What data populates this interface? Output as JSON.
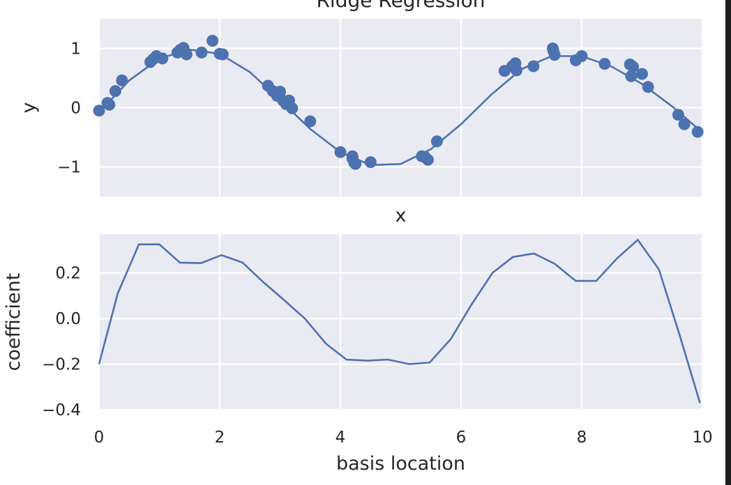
{
  "chart_data": [
    {
      "type": "scatter",
      "title": "Ridge Regression",
      "xlabel": "x",
      "ylabel": "y",
      "xlim": [
        0,
        10
      ],
      "ylim": [
        -1.5,
        1.5
      ],
      "x_ticks": [
        0,
        2,
        4,
        6,
        8,
        10
      ],
      "y_ticks": [
        -1,
        0,
        1
      ],
      "y_tick_labels": [
        "−1",
        "0",
        "1"
      ],
      "grid": true,
      "points": {
        "x": [
          0.0,
          0.14,
          0.17,
          0.27,
          0.38,
          0.85,
          0.9,
          0.95,
          1.05,
          1.3,
          1.35,
          1.4,
          1.45,
          1.7,
          1.88,
          2.0,
          2.05,
          2.8,
          2.88,
          2.95,
          3.0,
          3.05,
          3.1,
          3.15,
          3.2,
          3.5,
          4.0,
          4.2,
          4.2,
          4.23,
          4.25,
          4.5,
          5.35,
          5.4,
          5.45,
          5.6,
          6.72,
          6.85,
          6.9,
          6.92,
          7.2,
          7.52,
          7.53,
          7.55,
          7.9,
          8.0,
          8.38,
          8.8,
          8.82,
          8.85,
          9.0,
          9.1,
          9.6,
          9.7,
          9.92
        ],
        "y": [
          -0.05,
          0.08,
          0.05,
          0.28,
          0.46,
          0.77,
          0.82,
          0.87,
          0.83,
          0.93,
          0.98,
          1.01,
          0.9,
          0.93,
          1.13,
          0.91,
          0.9,
          0.37,
          0.28,
          0.2,
          0.27,
          0.12,
          0.06,
          0.12,
          -0.01,
          -0.23,
          -0.75,
          -0.82,
          -0.86,
          -0.93,
          -0.95,
          -0.92,
          -0.82,
          -0.83,
          -0.88,
          -0.57,
          0.62,
          0.7,
          0.75,
          0.63,
          0.7,
          1.0,
          0.96,
          0.89,
          0.8,
          0.87,
          0.74,
          0.73,
          0.53,
          0.69,
          0.57,
          0.35,
          -0.12,
          -0.28,
          -0.41
        ]
      },
      "fit": {
        "x": [
          0.0,
          0.5,
          1.0,
          1.5,
          2.0,
          2.5,
          3.0,
          3.5,
          4.0,
          4.5,
          5.0,
          5.5,
          6.0,
          6.5,
          7.0,
          7.5,
          8.0,
          8.5,
          9.0,
          9.5,
          10.0
        ],
        "y": [
          -0.08,
          0.46,
          0.83,
          0.98,
          0.91,
          0.6,
          0.13,
          -0.36,
          -0.75,
          -0.97,
          -0.95,
          -0.7,
          -0.28,
          0.22,
          0.65,
          0.87,
          0.87,
          0.69,
          0.4,
          0.02,
          -0.42
        ]
      }
    },
    {
      "type": "line",
      "title": "",
      "xlabel": "basis location",
      "ylabel": "coefficient",
      "xlim": [
        0,
        10
      ],
      "ylim": [
        -0.4,
        0.37
      ],
      "x_ticks": [
        0,
        2,
        4,
        6,
        8,
        10
      ],
      "x_tick_labels": [
        "0",
        "2",
        "4",
        "6",
        "8",
        "10"
      ],
      "y_ticks": [
        -0.4,
        -0.2,
        0.0,
        0.2
      ],
      "y_tick_labels": [
        "−0.4",
        "−0.2",
        "0.0",
        "0.2"
      ],
      "grid": true,
      "series": [
        {
          "x": [
            0.0,
            0.31,
            0.66,
            1.0,
            1.34,
            1.69,
            2.03,
            2.38,
            2.72,
            3.07,
            3.41,
            3.76,
            4.1,
            4.45,
            4.79,
            5.14,
            5.48,
            5.83,
            6.17,
            6.52,
            6.86,
            7.21,
            7.55,
            7.9,
            8.24,
            8.59,
            8.93,
            9.28,
            9.62,
            9.96
          ],
          "y": [
            -0.2,
            0.11,
            0.325,
            0.325,
            0.245,
            0.243,
            0.278,
            0.245,
            0.16,
            0.08,
            0.0,
            -0.11,
            -0.18,
            -0.185,
            -0.18,
            -0.2,
            -0.193,
            -0.09,
            0.06,
            0.2,
            0.27,
            0.285,
            0.24,
            0.165,
            0.165,
            0.265,
            0.345,
            0.215,
            -0.07,
            -0.37
          ]
        }
      ]
    }
  ]
}
